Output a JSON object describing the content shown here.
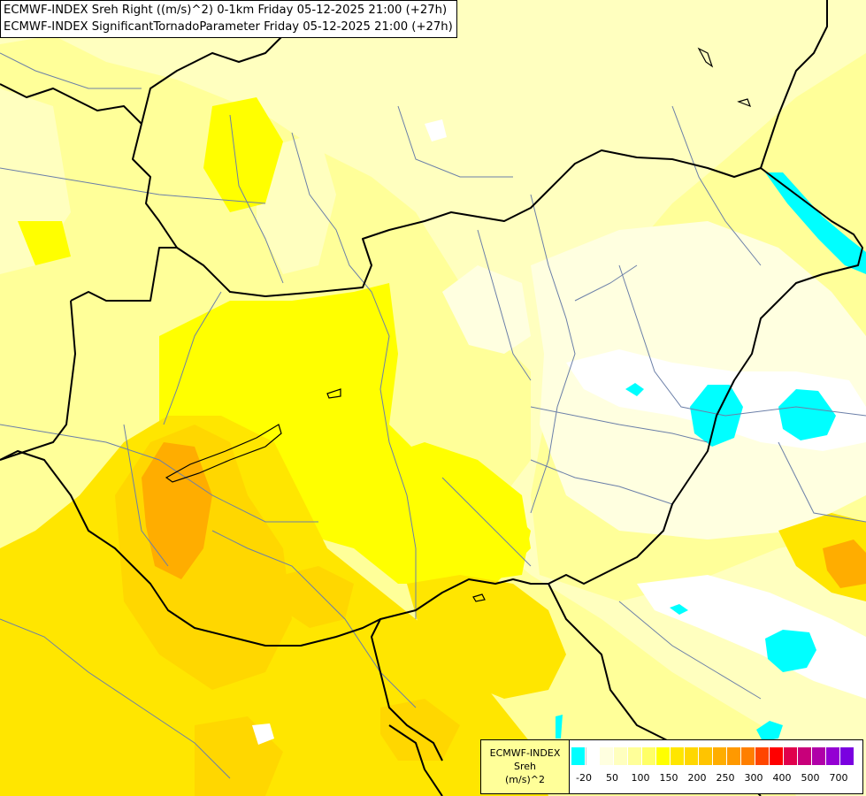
{
  "title": {
    "line1": "ECMWF-INDEX Sreh Right ((m/s)^2) 0-1km Friday 05-12-2025 21:00 (+27h)",
    "line2": "ECMWF-INDEX SignificantTornadoParameter Friday 05-12-2025 21:00 (+27h)"
  },
  "legend": {
    "source": "ECMWF-INDEX",
    "variable": "Sreh",
    "unit": "(m/s)^2",
    "ticks": [
      "-20",
      "50",
      "100",
      "150",
      "200",
      "250",
      "300",
      "400",
      "500",
      "700"
    ],
    "colors": [
      "#00ffff",
      "#ffffff",
      "#ffffe0",
      "#ffffbf",
      "#ffff99",
      "#ffff66",
      "#ffff00",
      "#ffe600",
      "#ffd700",
      "#ffc400",
      "#ffad00",
      "#ff9900",
      "#ff7f00",
      "#ff4500",
      "#ff0000",
      "#e0004c",
      "#c8007a",
      "#b000a8",
      "#9400d3",
      "#7a00e0",
      "#5c00c8",
      "#3c00a0",
      "#1e0080",
      "#000060"
    ]
  },
  "map_colors": {
    "base": "#ffff99",
    "light": "#ffffbf",
    "pale": "#ffffe0",
    "yellow": "#ffff00",
    "gold": "#ffe600",
    "amber": "#ffd700",
    "orange": "#ffad00",
    "cyan": "#00ffff",
    "white": "#ffffff",
    "border": "#000000",
    "river": "#6b7fa8"
  }
}
